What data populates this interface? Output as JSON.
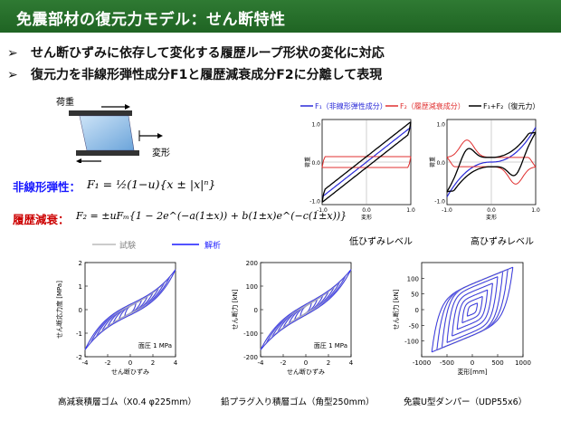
{
  "title": "免震部材の復元力モデル：せん断特性",
  "bullets": [
    "せん断ひずみに依存して変化する履歴ループ形状の変化に対応",
    "復元力を非線形弾性成分F1と履歴減衰成分F2に分離して表現"
  ],
  "bullet_marker": "➢",
  "schematic": {
    "load_label": "荷重",
    "deform_label": "変形"
  },
  "formulas": {
    "elastic_label": "非線形弾性：",
    "elastic_expr": "F₁ = ½(1−u){x ± |x|ⁿ}",
    "damping_label": "履歴減衰：",
    "damping_expr": "F₂ = ±uFₘ{1 − 2e^(−a(1±x)) + b(1±x)e^(−c(1±x))}"
  },
  "model_legend": {
    "f1": "F₁（非線形弾性成分）",
    "f2": "F₂（履歴減衰成分）",
    "f12": "F₁+F₂（復元力）"
  },
  "model_charts": [
    {
      "name": "低ひずみレベル",
      "xlabel": "変形",
      "ylabel": "荷重",
      "xticks": [
        "-1.0",
        "0.0",
        "1.0"
      ],
      "yticks": [
        "1.0",
        "0.0",
        "-1.0"
      ]
    },
    {
      "name": "高ひずみレベル",
      "xlabel": "変形",
      "ylabel": "荷重",
      "xticks": [
        "-1.0",
        "0.0",
        "1.0"
      ],
      "yticks": [
        "1.0",
        "0.0",
        "-1.0"
      ]
    }
  ],
  "test_legend": {
    "experiment": "試験",
    "analysis": "解析"
  },
  "colors": {
    "title_bg": "#2a7330",
    "accent_blue": "#1a1aff",
    "f2_red": "#e03030",
    "experiment_gray": "#b8b8b8",
    "formula_red": "#cc0000"
  },
  "chart_data": [
    {
      "type": "line",
      "title": "低ひずみレベル",
      "xlabel": "変形",
      "ylabel": "荷重",
      "xlim": [
        -1,
        1
      ],
      "ylim": [
        -1.1,
        1.1
      ],
      "series": [
        {
          "name": "F₁（非線形弾性成分）",
          "x": [
            -1,
            -0.5,
            0,
            0.5,
            1
          ],
          "y": [
            -0.9,
            -0.5,
            0,
            0.5,
            0.9
          ]
        },
        {
          "name": "F₂（履歴減衰成分）",
          "x": [
            -1,
            -0.9,
            0,
            0.9,
            1
          ],
          "y": [
            -0.12,
            0.12,
            0.12,
            0.12,
            0.12
          ]
        },
        {
          "name": "F₁+F₂（復元力）",
          "x": [
            -1,
            0,
            1
          ],
          "y": [
            -1.0,
            0.12,
            1.0
          ]
        }
      ]
    },
    {
      "type": "line",
      "title": "高ひずみレベル",
      "xlabel": "変形",
      "ylabel": "荷重",
      "xlim": [
        -1,
        1
      ],
      "ylim": [
        -1.1,
        1.1
      ],
      "series": [
        {
          "name": "F₁（非線形弾性成分）",
          "x": [
            -1,
            -0.5,
            0,
            0.5,
            1
          ],
          "y": [
            -0.9,
            -0.15,
            0,
            0.15,
            0.9
          ]
        },
        {
          "name": "F₂（履歴減衰成分）",
          "x": [
            -1,
            -0.6,
            0,
            0.6,
            1
          ],
          "y": [
            -0.1,
            0.45,
            0.1,
            0.1,
            0.1
          ]
        },
        {
          "name": "F₁+F₂（復元力）",
          "x": [
            -1,
            0,
            1
          ],
          "y": [
            -1.0,
            0.1,
            1.0
          ]
        }
      ]
    },
    {
      "type": "line",
      "title": "高減衰積層ゴム（X0.4 φ225mm）",
      "xlabel": "せん断ひずみ",
      "ylabel": "せん断応力度 [MPa]",
      "xlim": [
        -4,
        4
      ],
      "ylim": [
        -2,
        2
      ],
      "xticks": [
        "-4",
        "-2",
        "0",
        "2",
        "4"
      ],
      "yticks": [
        "2",
        "1",
        "0",
        "-1",
        "-2"
      ],
      "annotation": "面圧 1 MPa",
      "amplitudes": [
        0.5,
        1,
        1.5,
        2,
        2.5,
        3,
        3.5,
        4
      ]
    },
    {
      "type": "line",
      "title": "鉛プラグ入り積層ゴム（角型250mm）",
      "xlabel": "せん断ひずみ",
      "ylabel": "せん断力 [kN]",
      "xlim": [
        -4,
        4
      ],
      "ylim": [
        -200,
        200
      ],
      "xticks": [
        "-4",
        "-2",
        "0",
        "2",
        "4"
      ],
      "yticks": [
        "200",
        "100",
        "0",
        "-100",
        "-200"
      ],
      "annotation": "面圧 1 MPa",
      "amplitudes": [
        0.5,
        1,
        1.5,
        2,
        2.5,
        3,
        3.5,
        4
      ]
    },
    {
      "type": "line",
      "title": "免震U型ダンパー（UDP55x6）",
      "xlabel": "変形[mm]",
      "ylabel": "せん断力 [kN]",
      "xlim": [
        -1000,
        1000
      ],
      "ylim": [
        -150,
        150
      ],
      "xticks": [
        "-1000",
        "-500",
        "0",
        "500",
        "1000"
      ],
      "yticks": [
        "100",
        "50",
        "0",
        "-50",
        "-100"
      ],
      "amplitudes": [
        100,
        200,
        300,
        400,
        500,
        600,
        700,
        800
      ]
    }
  ]
}
